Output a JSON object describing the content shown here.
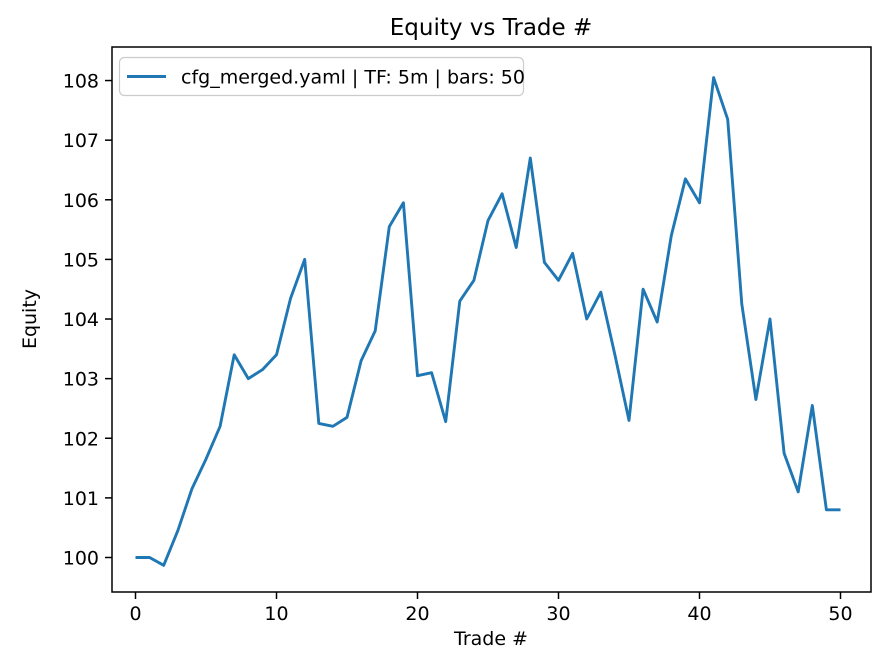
{
  "figure": {
    "title": "Equity vs Trade #",
    "xlabel": "Trade #",
    "ylabel": "Equity",
    "legend": {
      "label": "cfg_merged.yaml | TF: 5m | bars: 50",
      "line_color": "#1f77b4",
      "position": "upper left"
    }
  },
  "chart_data": {
    "type": "line",
    "title": "Equity vs Trade #",
    "xlabel": "Trade #",
    "ylabel": "Equity",
    "grid": false,
    "legend_position": "upper left",
    "x_ticks": [
      0,
      10,
      20,
      30,
      40,
      50
    ],
    "y_ticks": [
      100,
      101,
      102,
      103,
      104,
      105,
      106,
      107,
      108
    ],
    "xlim": [
      -1.7,
      52.2
    ],
    "ylim": [
      99.4,
      108.6
    ],
    "series": [
      {
        "name": "cfg_merged.yaml | TF: 5m | bars: 50",
        "color": "#1f77b4",
        "x": [
          0,
          1,
          2,
          3,
          4,
          5,
          6,
          7,
          8,
          9,
          10,
          11,
          12,
          13,
          14,
          15,
          16,
          17,
          18,
          19,
          20,
          21,
          22,
          23,
          24,
          25,
          26,
          27,
          28,
          29,
          30,
          31,
          32,
          33,
          34,
          35,
          36,
          37,
          38,
          39,
          40,
          41,
          42,
          43,
          44,
          45,
          46,
          47,
          48,
          49,
          50
        ],
        "values": [
          100.0,
          100.0,
          99.87,
          100.45,
          101.15,
          101.65,
          102.2,
          103.4,
          103.0,
          103.15,
          103.4,
          104.35,
          105.0,
          102.25,
          102.2,
          102.35,
          103.3,
          103.8,
          105.55,
          105.95,
          103.05,
          103.1,
          102.28,
          104.3,
          104.65,
          105.65,
          106.1,
          105.2,
          106.7,
          104.95,
          104.65,
          105.1,
          104.0,
          104.45,
          103.4,
          102.3,
          104.5,
          103.95,
          105.4,
          106.35,
          105.95,
          108.05,
          107.35,
          104.25,
          102.65,
          104.0,
          101.75,
          101.1,
          102.55,
          100.8,
          100.8
        ]
      }
    ]
  }
}
